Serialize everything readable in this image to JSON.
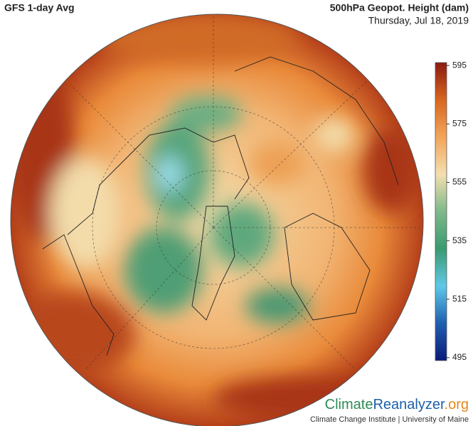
{
  "header": {
    "title": "GFS 1-day Avg",
    "variable": "500hPa Geopot. Height (dam)",
    "date": "Thursday, Jul 18, 2019"
  },
  "colorbar": {
    "lim": [
      494,
      596
    ],
    "ticks": [
      595,
      575,
      555,
      535,
      515,
      495
    ],
    "colors": [
      "#0a1a7a",
      "#1f5fb0",
      "#5fc9e8",
      "#3a9a70",
      "#7fb98a",
      "#f3dfb0",
      "#f2a55a",
      "#d9661e",
      "#8a1a10"
    ]
  },
  "footer": {
    "logo": [
      "Climate",
      "Reanalyzer",
      ".org"
    ],
    "credit": "Climate Change Institute | University of Maine"
  }
}
